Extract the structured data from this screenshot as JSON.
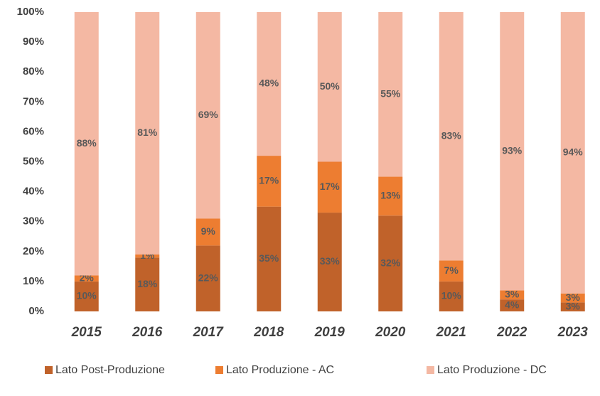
{
  "chart_data": {
    "type": "stacked_bar",
    "categories": [
      "2015",
      "2016",
      "2017",
      "2018",
      "2019",
      "2020",
      "2021",
      "2022",
      "2023"
    ],
    "series": [
      {
        "name": "Lato Post-Produzione",
        "color": "#c0622a",
        "values": [
          10,
          18,
          22,
          35,
          33,
          32,
          10,
          4,
          3
        ],
        "value_labels": [
          "10%",
          "18%",
          "22%",
          "35%",
          "33%",
          "32%",
          "10%",
          "4%",
          "3%"
        ]
      },
      {
        "name": "Lato Produzione - AC",
        "color": "#ed7d31",
        "values": [
          2,
          1,
          9,
          17,
          17,
          13,
          7,
          3,
          3
        ],
        "value_labels": [
          "2%",
          "1%",
          "9%",
          "17%",
          "17%",
          "13%",
          "7%",
          "3%",
          "3%"
        ]
      },
      {
        "name": "Lato Produzione - DC",
        "color": "#f4b8a3",
        "values": [
          88,
          81,
          69,
          48,
          50,
          55,
          83,
          93,
          94
        ],
        "value_labels": [
          "88%",
          "81%",
          "69%",
          "48%",
          "50%",
          "55%",
          "83%",
          "93%",
          "94%"
        ]
      }
    ],
    "ylim": [
      0,
      100
    ],
    "yticks": [
      {
        "value": 0,
        "label": "0%"
      },
      {
        "value": 10,
        "label": "10%"
      },
      {
        "value": 20,
        "label": "20%"
      },
      {
        "value": 30,
        "label": "30%"
      },
      {
        "value": 40,
        "label": "40%"
      },
      {
        "value": 50,
        "label": "50%"
      },
      {
        "value": 60,
        "label": "60%"
      },
      {
        "value": 70,
        "label": "70%"
      },
      {
        "value": 80,
        "label": "80%"
      },
      {
        "value": 90,
        "label": "90%"
      },
      {
        "value": 100,
        "label": "100%"
      }
    ],
    "legend": "bottom"
  }
}
